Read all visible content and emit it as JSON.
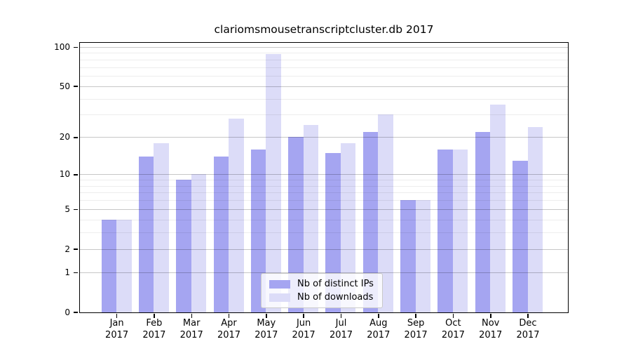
{
  "title": "clariomsmousetranscriptcluster.db 2017",
  "chart_data": {
    "type": "bar",
    "title": "clariomsmousetranscriptcluster.db 2017",
    "categories": [
      "Jan",
      "Feb",
      "Mar",
      "Apr",
      "May",
      "Jun",
      "Jul",
      "Aug",
      "Sep",
      "Oct",
      "Nov",
      "Dec"
    ],
    "category_year": "2017",
    "series": [
      {
        "name": "Nb of distinct IPs",
        "color": "#a5a5f1",
        "values": [
          4,
          14,
          9,
          14,
          16,
          20,
          15,
          22,
          6,
          16,
          22,
          13
        ]
      },
      {
        "name": "Nb of downloads",
        "color": "#dcdcf8",
        "values": [
          4,
          18,
          10,
          28,
          88,
          25,
          18,
          30,
          6,
          16,
          36,
          24
        ]
      }
    ],
    "yscale": "log1p",
    "ylim": [
      0,
      108
    ],
    "yticks": [
      0,
      1,
      2,
      5,
      10,
      20,
      50,
      100
    ],
    "minor_yticks": [
      3,
      4,
      6,
      7,
      8,
      9,
      30,
      40,
      60,
      70,
      80,
      90
    ],
    "grid": true,
    "legend_position": "lower center"
  }
}
